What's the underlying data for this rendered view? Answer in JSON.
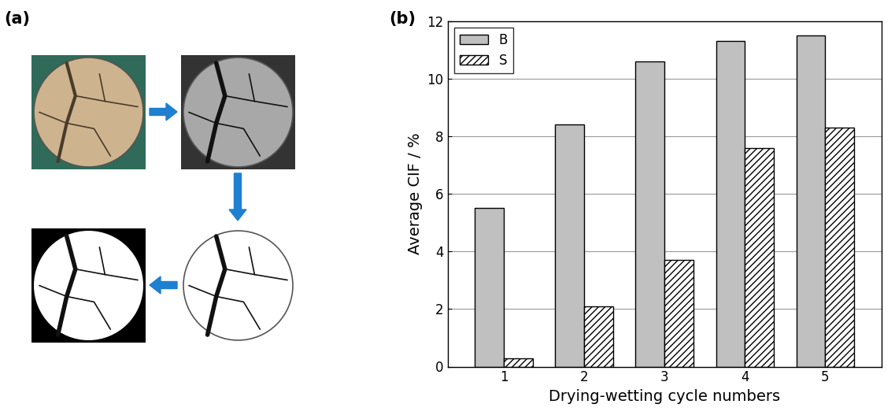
{
  "panel_labels": [
    "(a)",
    "(b)"
  ],
  "chart_data": {
    "type": "bar",
    "categories": [
      "1",
      "2",
      "3",
      "4",
      "5"
    ],
    "series": [
      {
        "name": "B",
        "color": "#c0c0c0",
        "values": [
          5.5,
          8.4,
          10.6,
          11.3,
          11.5
        ]
      },
      {
        "name": "S",
        "color": "#ffffff",
        "values": [
          0.3,
          2.1,
          3.7,
          7.6,
          8.3
        ]
      }
    ],
    "x_label": "Drying-wetting cycle numbers",
    "y_label": "Average CIF / %",
    "ylim": [
      0,
      12
    ],
    "yticks": [
      0,
      2,
      4,
      6,
      8,
      10,
      12
    ],
    "grid": true,
    "legend": "upper left"
  }
}
